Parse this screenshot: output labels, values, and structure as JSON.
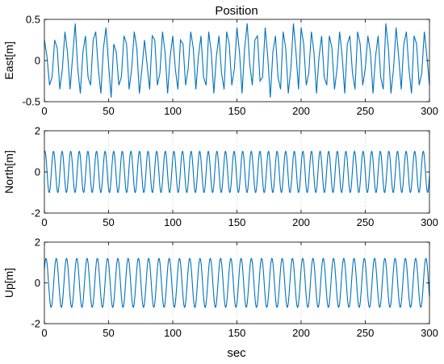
{
  "figure": {
    "title": "Position",
    "xlabel": "sec"
  },
  "chart_data": [
    {
      "type": "line",
      "title": "Position",
      "ylabel": "East[m]",
      "xlabel": "",
      "xlim": [
        0,
        300
      ],
      "ylim": [
        -0.5,
        0.5
      ],
      "xticks": [
        0,
        50,
        100,
        150,
        200,
        250,
        300
      ],
      "yticks": [
        -0.5,
        0,
        0.5
      ],
      "ytick_labels": [
        "-0.5",
        "0",
        "0.5"
      ],
      "grid": "vertical dotted",
      "line_color": "#0072BD",
      "series": [
        {
          "x": [
            0,
            2,
            4,
            6,
            8,
            10,
            12,
            14,
            16,
            18,
            20,
            22,
            24,
            26,
            28,
            30,
            32,
            34,
            36,
            38,
            40,
            42,
            44,
            46,
            48,
            50,
            52,
            54,
            56,
            58,
            60,
            62,
            64,
            66,
            68,
            70,
            72,
            74,
            76,
            78,
            80,
            82,
            84,
            86,
            88,
            90,
            92,
            94,
            96,
            98,
            100,
            102,
            104,
            106,
            108,
            110,
            112,
            114,
            116,
            118,
            120,
            122,
            124,
            126,
            128,
            130,
            132,
            134,
            136,
            138,
            140,
            142,
            144,
            146,
            148,
            150,
            152,
            154,
            156,
            158,
            160,
            162,
            164,
            166,
            168,
            170,
            172,
            174,
            176,
            178,
            180,
            182,
            184,
            186,
            188,
            190,
            192,
            194,
            196,
            198,
            200,
            202,
            204,
            206,
            208,
            210,
            212,
            214,
            216,
            218,
            220,
            222,
            224,
            226,
            228,
            230,
            232,
            234,
            236,
            238,
            240,
            242,
            244,
            246,
            248,
            250,
            252,
            254,
            256,
            258,
            260,
            262,
            264,
            266,
            268,
            270,
            272,
            274,
            276,
            278,
            280,
            282,
            284,
            286,
            288,
            290,
            292,
            294,
            296,
            298,
            300
          ],
          "values": [
            0.25,
            0.05,
            -0.3,
            -0.2,
            0.25,
            0.15,
            -0.35,
            -0.1,
            0.35,
            0.1,
            -0.35,
            0.05,
            0.45,
            -0.1,
            -0.4,
            0.1,
            0.3,
            -0.2,
            -0.3,
            0.25,
            0.35,
            -0.1,
            -0.4,
            0.15,
            0.4,
            -0.05,
            -0.45,
            0.2,
            0.1,
            -0.3,
            -0.2,
            0.3,
            0.2,
            -0.35,
            -0.1,
            0.35,
            0.15,
            -0.4,
            -0.1,
            0.25,
            -0.05,
            -0.35,
            0.3,
            0.25,
            -0.3,
            -0.15,
            0.35,
            0.1,
            -0.4,
            0.05,
            0.3,
            -0.1,
            -0.35,
            0.25,
            0.2,
            -0.3,
            -0.1,
            0.35,
            0.15,
            -0.35,
            0.05,
            0.3,
            -0.2,
            -0.3,
            0.35,
            0.1,
            -0.4,
            0.05,
            0.3,
            -0.15,
            -0.35,
            0.35,
            0.2,
            -0.3,
            -0.1,
            0.4,
            0.1,
            -0.4,
            0.15,
            0.45,
            -0.05,
            -0.3,
            0.25,
            0.3,
            -0.25,
            -0.2,
            0.4,
            0.05,
            -0.45,
            0.1,
            0.3,
            -0.2,
            -0.35,
            0.35,
            0.15,
            -0.4,
            -0.1,
            0.45,
            0.1,
            -0.35,
            0.4,
            0.2,
            -0.3,
            -0.15,
            0.35,
            0.1,
            -0.4,
            0.05,
            0.3,
            -0.2,
            -0.3,
            0.3,
            0.15,
            -0.35,
            -0.1,
            0.35,
            0.05,
            -0.4,
            0.2,
            0.3,
            -0.15,
            -0.35,
            0.35,
            0.2,
            -0.3,
            -0.1,
            0.3,
            0.1,
            -0.4,
            0.05,
            0.3,
            -0.2,
            -0.35,
            0.45,
            0.15,
            -0.4,
            -0.1,
            0.4,
            0.05,
            -0.35,
            0.2,
            0.35,
            -0.1,
            -0.4,
            0.3,
            0.2,
            -0.3,
            -0.15,
            0.35,
            0.05,
            -0.3
          ]
        }
      ]
    },
    {
      "type": "line",
      "ylabel": "North[m]",
      "xlabel": "",
      "xlim": [
        0,
        300
      ],
      "ylim": [
        -2,
        2
      ],
      "xticks": [
        0,
        50,
        100,
        150,
        200,
        250,
        300
      ],
      "yticks": [
        -2,
        0,
        2
      ],
      "ytick_labels": [
        "-2",
        "0",
        "2"
      ],
      "grid": "vertical dotted",
      "line_color": "#0072BD",
      "series": [
        {
          "function": "sine",
          "amplitude": 1.0,
          "period_sec": 6.7,
          "phase_rad": 1.2
        }
      ]
    },
    {
      "type": "line",
      "ylabel": "Up[m]",
      "xlabel": "sec",
      "xlim": [
        0,
        300
      ],
      "ylim": [
        -2,
        2
      ],
      "xticks": [
        0,
        50,
        100,
        150,
        200,
        250,
        300
      ],
      "yticks": [
        -2,
        0,
        2
      ],
      "ytick_labels": [
        "-2",
        "0",
        "2"
      ],
      "grid": "vertical dotted",
      "line_color": "#0072BD",
      "series": [
        {
          "function": "sine",
          "amplitude": 1.2,
          "period_sec": 8.0,
          "phase_rad": 0.6
        }
      ]
    }
  ]
}
